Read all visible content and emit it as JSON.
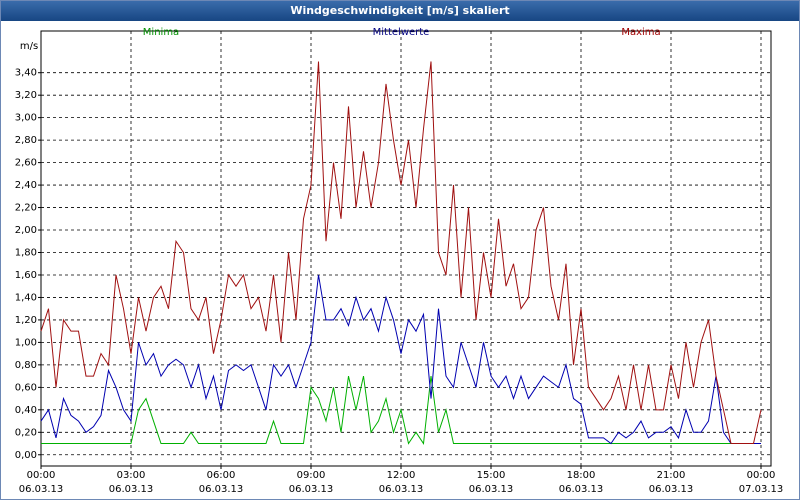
{
  "chart_data": {
    "type": "line",
    "title": "Windgeschwindigkeit [m/s] skaliert",
    "ylabel": "m/s",
    "legend": "top",
    "grid": true,
    "xlim": [
      0,
      24
    ],
    "ylim": [
      -0.1,
      3.7
    ],
    "xticks": [
      {
        "value": 0,
        "label": "00:00\n06.03.13"
      },
      {
        "value": 3,
        "label": "03:00\n06.03.13"
      },
      {
        "value": 6,
        "label": "06:00\n06.03.13"
      },
      {
        "value": 9,
        "label": "09:00\n06.03.13"
      },
      {
        "value": 12,
        "label": "12:00\n06.03.13"
      },
      {
        "value": 15,
        "label": "15:00\n06.03.13"
      },
      {
        "value": 18,
        "label": "18:00\n06.03.13"
      },
      {
        "value": 21,
        "label": "21:00\n06.03.13"
      },
      {
        "value": 24,
        "label": "00:00\n07.03.13"
      }
    ],
    "yticks": [
      {
        "value": 0,
        "label": "0,00"
      },
      {
        "value": 0.2,
        "label": "0,20"
      },
      {
        "value": 0.4,
        "label": "0,40"
      },
      {
        "value": 0.6,
        "label": "0,60"
      },
      {
        "value": 0.8,
        "label": "0,80"
      },
      {
        "value": 1.0,
        "label": "1,00"
      },
      {
        "value": 1.2,
        "label": "1,20"
      },
      {
        "value": 1.4,
        "label": "1,40"
      },
      {
        "value": 1.6,
        "label": "1,60"
      },
      {
        "value": 1.8,
        "label": "1,80"
      },
      {
        "value": 2.0,
        "label": "2,00"
      },
      {
        "value": 2.2,
        "label": "2,20"
      },
      {
        "value": 2.4,
        "label": "2,40"
      },
      {
        "value": 2.6,
        "label": "2,60"
      },
      {
        "value": 2.8,
        "label": "2,80"
      },
      {
        "value": 3.0,
        "label": "3,00"
      },
      {
        "value": 3.2,
        "label": "3,20"
      },
      {
        "value": 3.4,
        "label": "3,40"
      }
    ],
    "x": [
      0,
      0.25,
      0.5,
      0.75,
      1,
      1.25,
      1.5,
      1.75,
      2,
      2.25,
      2.5,
      2.75,
      3,
      3.25,
      3.5,
      3.75,
      4,
      4.25,
      4.5,
      4.75,
      5,
      5.25,
      5.5,
      5.75,
      6,
      6.25,
      6.5,
      6.75,
      7,
      7.25,
      7.5,
      7.75,
      8,
      8.25,
      8.5,
      8.75,
      9,
      9.25,
      9.5,
      9.75,
      10,
      10.25,
      10.5,
      10.75,
      11,
      11.25,
      11.5,
      11.75,
      12,
      12.25,
      12.5,
      12.75,
      13,
      13.25,
      13.5,
      13.75,
      14,
      14.25,
      14.5,
      14.75,
      15,
      15.25,
      15.5,
      15.75,
      16,
      16.25,
      16.5,
      16.75,
      17,
      17.25,
      17.5,
      17.75,
      18,
      18.25,
      18.5,
      18.75,
      19,
      19.25,
      19.5,
      19.75,
      20,
      20.25,
      20.5,
      20.75,
      21,
      21.25,
      21.5,
      21.75,
      22,
      22.25,
      22.5,
      22.75,
      23,
      23.25,
      23.5,
      23.75,
      24
    ],
    "series": [
      {
        "name": "Minima",
        "color": "#00b000",
        "legend_color": "#009000",
        "values": [
          0.1,
          0.1,
          0.1,
          0.1,
          0.1,
          0.1,
          0.1,
          0.1,
          0.1,
          0.1,
          0.1,
          0.1,
          0.1,
          0.4,
          0.5,
          0.3,
          0.1,
          0.1,
          0.1,
          0.1,
          0.2,
          0.1,
          0.1,
          0.1,
          0.1,
          0.1,
          0.1,
          0.1,
          0.1,
          0.1,
          0.1,
          0.3,
          0.1,
          0.1,
          0.1,
          0.1,
          0.6,
          0.5,
          0.3,
          0.6,
          0.2,
          0.7,
          0.4,
          0.7,
          0.2,
          0.3,
          0.5,
          0.2,
          0.4,
          0.1,
          0.2,
          0.1,
          0.7,
          0.2,
          0.4,
          0.1,
          0.1,
          0.1,
          0.1,
          0.1,
          0.1,
          0.1,
          0.1,
          0.1,
          0.1,
          0.1,
          0.1,
          0.1,
          0.1,
          0.1,
          0.1,
          0.1,
          0.1,
          0.1,
          0.1,
          0.1,
          0.1,
          0.1,
          0.1,
          0.1,
          0.1,
          0.1,
          0.1,
          0.1,
          0.1,
          0.1,
          0.1,
          0.1,
          0.1,
          0.1,
          0.1,
          0.1,
          0.1,
          0.1,
          0.1,
          0.1,
          0.1
        ]
      },
      {
        "name": "Mittelwerte",
        "color": "#0000b0",
        "legend_color": "#000080",
        "values": [
          0.3,
          0.4,
          0.15,
          0.5,
          0.35,
          0.3,
          0.2,
          0.25,
          0.35,
          0.75,
          0.6,
          0.4,
          0.3,
          1.0,
          0.8,
          0.9,
          0.7,
          0.8,
          0.85,
          0.8,
          0.6,
          0.8,
          0.5,
          0.7,
          0.4,
          0.75,
          0.8,
          0.75,
          0.8,
          0.6,
          0.4,
          0.8,
          0.7,
          0.8,
          0.6,
          0.8,
          1.0,
          1.6,
          1.2,
          1.2,
          1.3,
          1.15,
          1.4,
          1.2,
          1.3,
          1.1,
          1.4,
          1.2,
          0.9,
          1.2,
          1.1,
          1.25,
          0.5,
          1.3,
          0.7,
          0.6,
          1.0,
          0.8,
          0.6,
          1.0,
          0.7,
          0.6,
          0.7,
          0.5,
          0.7,
          0.5,
          0.6,
          0.7,
          0.65,
          0.6,
          0.8,
          0.5,
          0.45,
          0.15,
          0.15,
          0.15,
          0.1,
          0.2,
          0.15,
          0.2,
          0.3,
          0.15,
          0.2,
          0.2,
          0.25,
          0.15,
          0.4,
          0.2,
          0.2,
          0.3,
          0.7,
          0.2,
          0.1,
          0.1,
          0.1,
          0.1,
          0.1
        ]
      },
      {
        "name": "Maxima",
        "color": "#a01010",
        "legend_color": "#a00000",
        "values": [
          1.1,
          1.3,
          0.6,
          1.2,
          1.1,
          1.1,
          0.7,
          0.7,
          0.9,
          0.8,
          1.6,
          1.3,
          0.9,
          1.4,
          1.1,
          1.4,
          1.5,
          1.3,
          1.9,
          1.8,
          1.3,
          1.2,
          1.4,
          0.9,
          1.2,
          1.6,
          1.5,
          1.6,
          1.3,
          1.4,
          1.1,
          1.6,
          1.0,
          1.8,
          1.2,
          2.1,
          2.4,
          3.5,
          1.9,
          2.6,
          2.1,
          3.1,
          2.2,
          2.7,
          2.2,
          2.6,
          3.3,
          2.8,
          2.4,
          2.8,
          2.2,
          2.9,
          3.5,
          1.8,
          1.6,
          2.4,
          1.4,
          2.2,
          1.2,
          1.8,
          1.4,
          2.1,
          1.5,
          1.7,
          1.3,
          1.4,
          2.0,
          2.2,
          1.5,
          1.2,
          1.7,
          0.8,
          1.3,
          0.6,
          0.5,
          0.4,
          0.5,
          0.7,
          0.4,
          0.8,
          0.4,
          0.8,
          0.4,
          0.4,
          0.8,
          0.5,
          1.0,
          0.6,
          1.0,
          1.2,
          0.7,
          0.4,
          0.1,
          0.1,
          0.1,
          0.1,
          0.4
        ]
      }
    ]
  }
}
